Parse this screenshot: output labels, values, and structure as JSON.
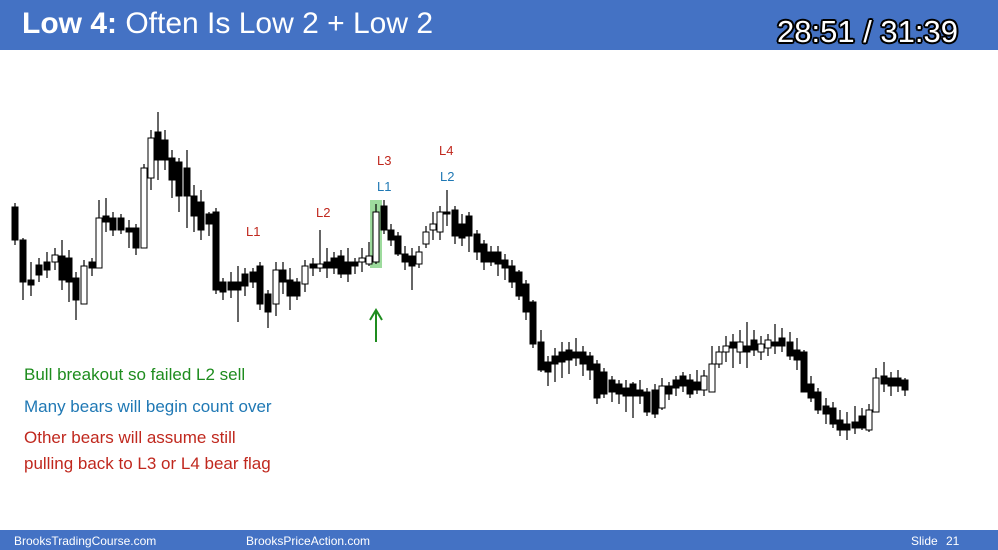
{
  "slide": {
    "title_bold": "Low 4:",
    "title_rest": " Often Is Low 2 + Low 2",
    "timer": "28:51 / 31:39",
    "colors": {
      "header": "#4472c4",
      "green": "#1e8c1e",
      "blue": "#1f78b4",
      "red": "#c0281e",
      "highlight": "#7ccf7c"
    }
  },
  "chart_labels": {
    "l1_first": "L1",
    "l2_first": "L2",
    "l3": "L3",
    "l1_second": "L1",
    "l4": "L4",
    "l2_second": "L2"
  },
  "notes": {
    "green": "Bull breakout so failed L2 sell",
    "blue": "Many bears will begin count over",
    "red_line1": "Other bears will assume still",
    "red_line2": "pulling back to L3 or L4 bear flag"
  },
  "footer": {
    "left": "BrooksTradingCourse.com",
    "center": "BrooksPriceAction.com",
    "slide_label": "Slide",
    "slide_number": "21"
  }
}
